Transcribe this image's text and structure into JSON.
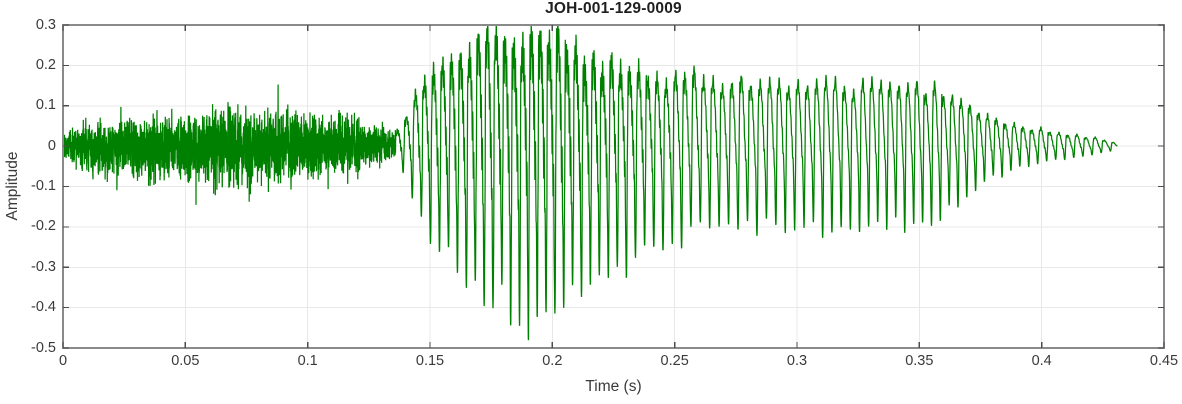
{
  "figure": {
    "background_color": "#ffffff"
  },
  "chart_data": {
    "type": "line",
    "subtype": "audio-waveform",
    "title": "JOH-001-129-0009",
    "xlabel": "Time (s)",
    "ylabel": "Amplitude",
    "xlim": [
      0,
      0.45
    ],
    "ylim": [
      -0.5,
      0.3
    ],
    "xticks": [
      0,
      0.05,
      0.1,
      0.15,
      0.2,
      0.25,
      0.3,
      0.35,
      0.4,
      0.45
    ],
    "xtick_labels": [
      "0",
      "0.05",
      "0.1",
      "0.15",
      "0.2",
      "0.25",
      "0.3",
      "0.35",
      "0.4",
      "0.45"
    ],
    "yticks": [
      -0.5,
      -0.4,
      -0.3,
      -0.2,
      -0.1,
      0,
      0.1,
      0.2,
      0.3
    ],
    "ytick_labels": [
      "-0.5",
      "-0.4",
      "-0.3",
      "-0.2",
      "-0.1",
      "0",
      "0.1",
      "0.2",
      "0.3"
    ],
    "grid": true,
    "legend": "none",
    "line_color": "#008000",
    "grid_color": "#e8e8e8",
    "axis_box_color": "#8a8a8a",
    "tick_mark_color": "#4d4d4d",
    "tick_label_color": "#3a3a3a",
    "title_color": "#1f1f1f",
    "signal": {
      "description": "Speech waveform: unvoiced noise burst 0-0.136 s, strong voiced vowel 0.138-0.235 s peaking +0.28/-0.45 near t=0.19, sustained voiced section ~+0.16/-0.20 until 0.36 s, decaying sinusoidal tail ending at 0.431 s",
      "t_end_s": 0.431,
      "peak_positive": 0.28,
      "peak_negative": -0.45,
      "segments": [
        {
          "kind": "noise",
          "t0": 0.0,
          "t1": 0.136,
          "envelope": [
            [
              0.0,
              0.03
            ],
            [
              0.004,
              0.055
            ],
            [
              0.01,
              0.07
            ],
            [
              0.02,
              0.075
            ],
            [
              0.03,
              0.08
            ],
            [
              0.038,
              0.095
            ],
            [
              0.045,
              0.085
            ],
            [
              0.052,
              0.09
            ],
            [
              0.06,
              0.11
            ],
            [
              0.066,
              0.12
            ],
            [
              0.072,
              0.105
            ],
            [
              0.08,
              0.11
            ],
            [
              0.088,
              0.1
            ],
            [
              0.096,
              0.105
            ],
            [
              0.104,
              0.095
            ],
            [
              0.112,
              0.09
            ],
            [
              0.12,
              0.08
            ],
            [
              0.127,
              0.065
            ],
            [
              0.132,
              0.05
            ],
            [
              0.136,
              0.04
            ]
          ]
        },
        {
          "kind": "voiced",
          "t0": 0.136,
          "t1": 0.431,
          "f0_hz": 268,
          "envelope": [
            [
              0.136,
              0.03,
              0.03
            ],
            [
              0.141,
              0.08,
              0.1
            ],
            [
              0.146,
              0.15,
              0.18
            ],
            [
              0.152,
              0.19,
              0.25
            ],
            [
              0.16,
              0.22,
              0.3
            ],
            [
              0.168,
              0.25,
              0.34
            ],
            [
              0.176,
              0.28,
              0.37
            ],
            [
              0.184,
              0.26,
              0.41
            ],
            [
              0.192,
              0.27,
              0.45
            ],
            [
              0.199,
              0.28,
              0.42
            ],
            [
              0.206,
              0.24,
              0.38
            ],
            [
              0.214,
              0.21,
              0.34
            ],
            [
              0.222,
              0.2,
              0.31
            ],
            [
              0.23,
              0.19,
              0.3
            ],
            [
              0.238,
              0.175,
              0.275
            ],
            [
              0.248,
              0.165,
              0.245
            ],
            [
              0.258,
              0.175,
              0.215
            ],
            [
              0.268,
              0.17,
              0.195
            ],
            [
              0.285,
              0.16,
              0.2
            ],
            [
              0.305,
              0.16,
              0.205
            ],
            [
              0.325,
              0.155,
              0.21
            ],
            [
              0.345,
              0.15,
              0.195
            ],
            [
              0.358,
              0.145,
              0.175
            ],
            [
              0.365,
              0.12,
              0.14
            ],
            [
              0.373,
              0.095,
              0.105
            ],
            [
              0.382,
              0.07,
              0.075
            ],
            [
              0.392,
              0.05,
              0.055
            ],
            [
              0.403,
              0.038,
              0.04
            ],
            [
              0.413,
              0.028,
              0.03
            ],
            [
              0.422,
              0.02,
              0.021
            ],
            [
              0.429,
              0.012,
              0.012
            ],
            [
              0.431,
              0.003,
              0.003
            ]
          ],
          "hf_ripple": {
            "freq_hz": 2300,
            "envelope": [
              [
                0.14,
                0.01
              ],
              [
                0.15,
                0.04
              ],
              [
                0.165,
                0.06
              ],
              [
                0.185,
                0.085
              ],
              [
                0.205,
                0.08
              ],
              [
                0.225,
                0.05
              ],
              [
                0.245,
                0.025
              ],
              [
                0.27,
                0.015
              ],
              [
                0.31,
                0.01
              ],
              [
                0.36,
                0.008
              ],
              [
                0.4,
                0.004
              ],
              [
                0.431,
                0.0
              ]
            ]
          }
        }
      ]
    }
  }
}
